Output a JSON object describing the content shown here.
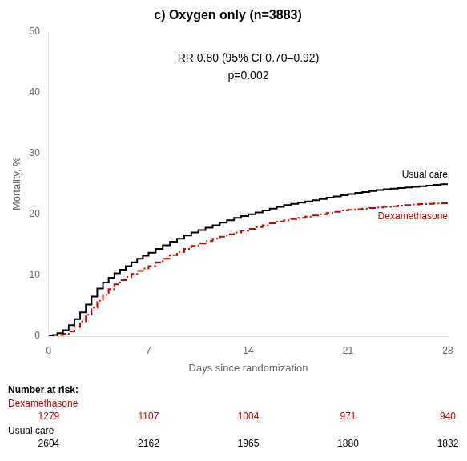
{
  "chart_data": {
    "type": "step",
    "title": "c) Oxygen only (n=3883)",
    "x_label": "Days since randomization",
    "y_label": "Mortality, %",
    "x": [
      0,
      0.3,
      0.6,
      1.0,
      1.4,
      1.8,
      2.2,
      2.6,
      3.0,
      3.4,
      3.8,
      4.2,
      4.6,
      5.0,
      5.4,
      5.8,
      6.2,
      6.6,
      7.0,
      7.5,
      8.0,
      8.5,
      9.0,
      9.5,
      10.0,
      10.5,
      11.0,
      11.5,
      12.0,
      12.5,
      13.0,
      13.5,
      14.0,
      14.5,
      15.0,
      15.5,
      16.0,
      16.5,
      17.0,
      17.5,
      18.0,
      18.5,
      19.0,
      19.5,
      20.0,
      20.5,
      21.0,
      21.5,
      22.0,
      22.5,
      23.0,
      23.5,
      24.0,
      24.5,
      25.0,
      25.5,
      26.0,
      26.5,
      27.0,
      27.5,
      28.0
    ],
    "series": [
      {
        "name": "Usual care",
        "color": "#000000",
        "line_style": "solid",
        "values": [
          0,
          0.2,
          0.5,
          1.0,
          1.8,
          2.8,
          3.9,
          5.2,
          6.5,
          7.8,
          8.8,
          9.6,
          10.3,
          10.9,
          11.5,
          12.1,
          12.7,
          13.2,
          13.7,
          14.3,
          14.9,
          15.5,
          16.0,
          16.5,
          17.0,
          17.4,
          17.8,
          18.2,
          18.6,
          19.0,
          19.4,
          19.7,
          20.0,
          20.3,
          20.6,
          20.9,
          21.2,
          21.5,
          21.7,
          21.9,
          22.1,
          22.3,
          22.5,
          22.7,
          22.9,
          23.1,
          23.3,
          23.5,
          23.65,
          23.8,
          23.95,
          24.1,
          24.2,
          24.3,
          24.4,
          24.5,
          24.6,
          24.7,
          24.8,
          24.9,
          25.0
        ]
      },
      {
        "name": "Dexamethasone",
        "color": "#cc0000",
        "line_style": "dashdot",
        "values": [
          0,
          0.1,
          0.2,
          0.4,
          0.8,
          1.5,
          2.4,
          3.5,
          4.7,
          5.8,
          6.8,
          7.7,
          8.5,
          9.2,
          9.7,
          10.2,
          10.7,
          11.1,
          11.5,
          12.1,
          12.7,
          13.3,
          13.8,
          14.3,
          14.8,
          15.2,
          15.6,
          16.0,
          16.3,
          16.7,
          17.0,
          17.3,
          17.6,
          17.9,
          18.2,
          18.5,
          18.8,
          19.0,
          19.2,
          19.4,
          19.6,
          19.8,
          20.0,
          20.2,
          20.4,
          20.6,
          20.7,
          20.8,
          20.9,
          21.0,
          21.1,
          21.2,
          21.3,
          21.4,
          21.5,
          21.6,
          21.65,
          21.7,
          21.75,
          21.8,
          21.9
        ]
      }
    ],
    "xlim": [
      0,
      28
    ],
    "xticks": [
      0,
      7,
      14,
      21,
      28
    ],
    "ylim": [
      0,
      50
    ],
    "yticks": [
      0,
      10,
      20,
      30,
      40,
      50
    ],
    "grid": false,
    "annotations": [
      "RR 0.80 (95% CI 0.70–0.92)",
      "p=0.002"
    ],
    "risk_table": {
      "title": "Number at risk:",
      "x": [
        0,
        7,
        14,
        21,
        28
      ],
      "rows": [
        {
          "name": "Dexamethasone",
          "color": "#cc0000",
          "values": [
            1279,
            1107,
            1004,
            971,
            940
          ]
        },
        {
          "name": "Usual care",
          "color": "#000000",
          "values": [
            2604,
            2162,
            1965,
            1880,
            1832
          ]
        }
      ]
    }
  }
}
